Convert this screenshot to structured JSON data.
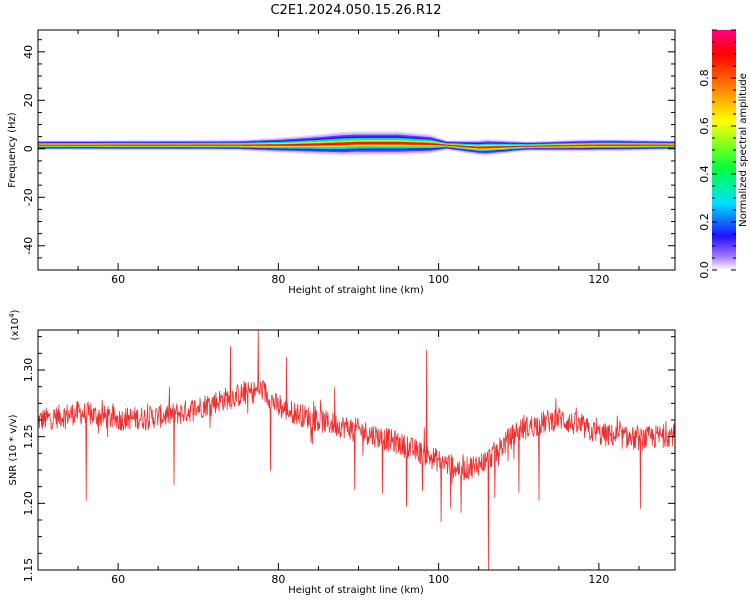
{
  "title": "C2E1.2024.050.15.26.R12",
  "colors": {
    "snr_line": "#f03030",
    "frame": "#000000"
  },
  "chart_data": [
    {
      "type": "heatmap",
      "xlabel": "Height of straight line (km)",
      "ylabel": "Frequency (Hz)",
      "xlim": [
        50,
        129.5
      ],
      "ylim": [
        -50,
        49
      ],
      "xticks": [
        60,
        80,
        100,
        120
      ],
      "yticks": [
        -40,
        -20,
        0,
        20,
        40
      ],
      "xtick_labels": [
        "60",
        "80",
        "100",
        "120"
      ],
      "ytick_labels": [
        "-40",
        "-20",
        "0",
        "20",
        "40"
      ],
      "colorbar": {
        "label": "Normalized spectral amplitude",
        "range": [
          0,
          1
        ],
        "ticks": [
          0.0,
          0.2,
          0.4,
          0.6,
          0.8
        ],
        "tick_labels": [
          "0.0",
          "0.2",
          "0.4",
          "0.6",
          "0.8"
        ],
        "colormap": "rainbow"
      },
      "band_center_hz": [
        [
          50,
          1.5
        ],
        [
          75,
          1.5
        ],
        [
          80,
          1.5
        ],
        [
          85,
          1.8
        ],
        [
          90,
          2.3
        ],
        [
          95,
          2.3
        ],
        [
          99,
          2.0
        ],
        [
          101,
          1.5
        ],
        [
          105,
          0.5
        ],
        [
          110,
          1.0
        ],
        [
          120,
          1.5
        ],
        [
          129.5,
          1.5
        ]
      ],
      "band_halfwidth_hz": [
        [
          50,
          2.0
        ],
        [
          75,
          2.2
        ],
        [
          82,
          3.5
        ],
        [
          88,
          5.0
        ],
        [
          95,
          5.0
        ],
        [
          99,
          4.0
        ],
        [
          101,
          2.0
        ],
        [
          106,
          3.5
        ],
        [
          111,
          2.0
        ],
        [
          118,
          2.5
        ],
        [
          122,
          2.5
        ],
        [
          129.5,
          2.0
        ]
      ],
      "grid": false
    },
    {
      "type": "line",
      "xlabel": "Height of straight line (km)",
      "ylabel": "SNR (10 * v/v)",
      "y_multiplier_label": "(x10",
      "y_multiplier_exponent": "4",
      "y_multiplier_close": ")",
      "xlim": [
        50,
        129.5
      ],
      "ylim": [
        1.15,
        1.33
      ],
      "xticks": [
        60,
        80,
        100,
        120
      ],
      "yticks": [
        1.15,
        1.2,
        1.25,
        1.3
      ],
      "xtick_labels": [
        "60",
        "80",
        "100",
        "120"
      ],
      "ytick_labels": [
        "1.15",
        "1.20",
        "1.25",
        "1.30"
      ],
      "series": [
        {
          "trend": [
            [
              50,
              1.262
            ],
            [
              55,
              1.268
            ],
            [
              60,
              1.263
            ],
            [
              65,
              1.265
            ],
            [
              68,
              1.268
            ],
            [
              72,
              1.276
            ],
            [
              75,
              1.281
            ],
            [
              78,
              1.285
            ],
            [
              80,
              1.272
            ],
            [
              85,
              1.262
            ],
            [
              90,
              1.255
            ],
            [
              95,
              1.245
            ],
            [
              100,
              1.232
            ],
            [
              103,
              1.225
            ],
            [
              106,
              1.232
            ],
            [
              110,
              1.255
            ],
            [
              115,
              1.264
            ],
            [
              120,
              1.252
            ],
            [
              125,
              1.248
            ],
            [
              129.5,
              1.252
            ]
          ],
          "noise_amplitude": 0.009,
          "spikes": [
            [
              56.0,
              1.202
            ],
            [
              67.0,
              1.214
            ],
            [
              74.0,
              1.318
            ],
            [
              77.5,
              1.33
            ],
            [
              79.0,
              1.224
            ],
            [
              81.0,
              1.31
            ],
            [
              87.0,
              1.287
            ],
            [
              89.5,
              1.21
            ],
            [
              93.0,
              1.207
            ],
            [
              96.0,
              1.197
            ],
            [
              98.0,
              1.209
            ],
            [
              100.3,
              1.186
            ],
            [
              101.5,
              1.196
            ],
            [
              102.8,
              1.193
            ],
            [
              104.5,
              1.223
            ],
            [
              106.2,
              1.15
            ],
            [
              107.0,
              1.204
            ],
            [
              110.0,
              1.208
            ],
            [
              112.5,
              1.202
            ],
            [
              125.2,
              1.196
            ],
            [
              98.5,
              1.315
            ]
          ]
        }
      ],
      "grid": false
    }
  ]
}
